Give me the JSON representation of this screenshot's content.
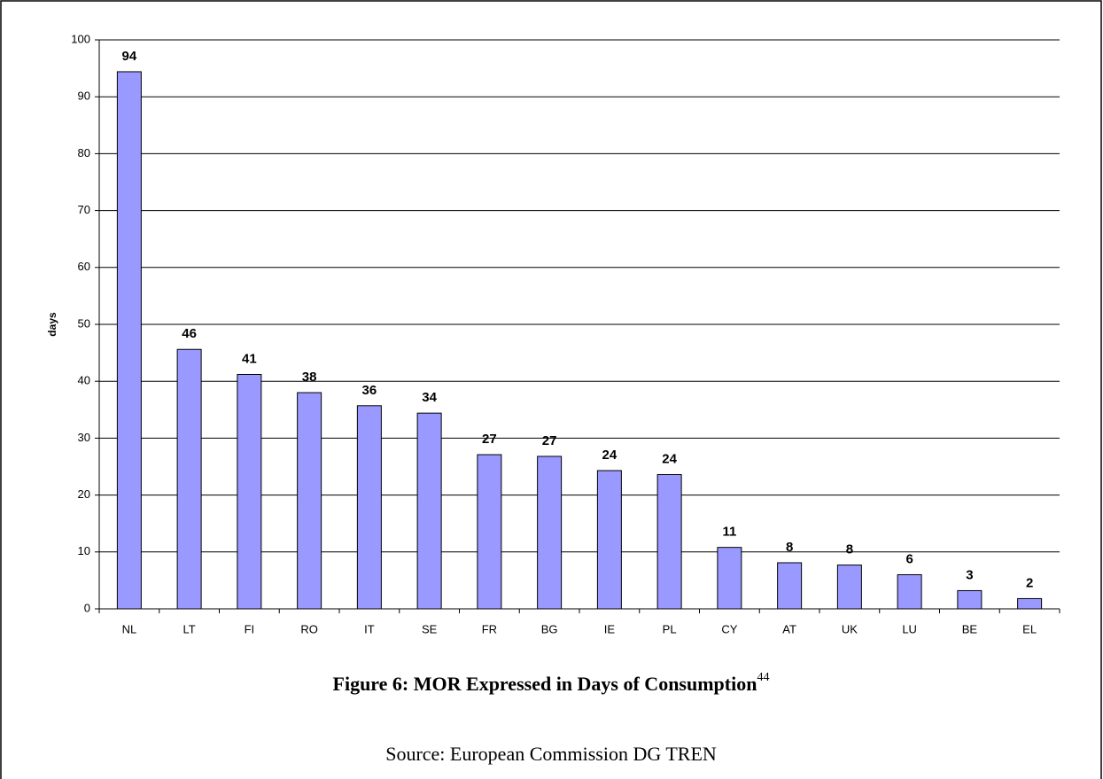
{
  "chart_data": {
    "type": "bar",
    "title": "Figure 6: MOR Expressed in Days of Consumption",
    "footnote": "44",
    "source": "Source: European Commission DG TREN",
    "y_label": "days",
    "categories": [
      "NL",
      "LT",
      "FI",
      "RO",
      "IT",
      "SE",
      "FR",
      "BG",
      "IE",
      "PL",
      "CY",
      "AT",
      "UK",
      "LU",
      "BE",
      "EL"
    ],
    "values": [
      94.4,
      45.6,
      41.2,
      38.0,
      35.7,
      34.4,
      27.1,
      26.8,
      24.3,
      23.6,
      10.8,
      8.1,
      7.7,
      6.0,
      3.2,
      1.8
    ],
    "value_labels": [
      "94",
      "46",
      "41",
      "38",
      "36",
      "34",
      "27",
      "27",
      "24",
      "24",
      "11",
      "8",
      "8",
      "6",
      "3",
      "2"
    ],
    "color": "#9999ff",
    "ylim": [
      0,
      100
    ],
    "yticks": [
      0,
      10,
      20,
      30,
      40,
      50,
      60,
      70,
      80,
      90,
      100
    ],
    "grid": true
  }
}
